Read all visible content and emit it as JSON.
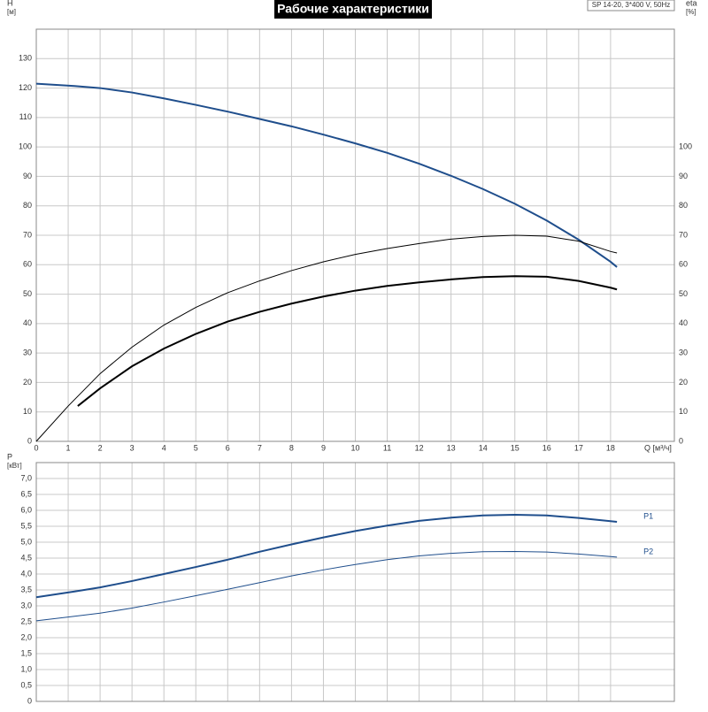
{
  "chart_data": [
    {
      "type": "line",
      "title": "Рабочие характеристики",
      "subtitle": "SP 14-20, 3*400 V, 50Hz",
      "ylabel": "H",
      "yunit": "[м]",
      "y2label": "eta",
      "y2unit": "[%]",
      "xlabel": "Q [м³/ч]",
      "xlim": [
        0,
        20
      ],
      "xticks": [
        0,
        1,
        2,
        3,
        4,
        5,
        6,
        7,
        8,
        9,
        10,
        11,
        12,
        13,
        14,
        15,
        16,
        17,
        18
      ],
      "ylim": [
        0,
        140
      ],
      "yticks": [
        0,
        10,
        20,
        30,
        40,
        50,
        60,
        70,
        80,
        90,
        100,
        110,
        120,
        130
      ],
      "y2lim": [
        0,
        140
      ],
      "y2ticks": [
        0,
        10,
        20,
        30,
        40,
        50,
        60,
        70,
        80,
        90,
        100
      ],
      "grid": true,
      "series": [
        {
          "color": "#1f4e8c",
          "width": 2,
          "x": [
            0,
            1.2,
            2,
            3,
            4,
            5,
            6,
            7,
            8,
            9,
            10,
            11,
            12,
            13,
            14,
            15,
            16,
            17,
            18,
            18.2
          ],
          "values": [
            121.5,
            120.7,
            120,
            118.5,
            116.5,
            114.3,
            112,
            109.5,
            107,
            104.2,
            101.2,
            98,
            94.3,
            90.2,
            85.7,
            80.7,
            75,
            68.5,
            61,
            59.2
          ]
        },
        {
          "color": "#000000",
          "width": 1,
          "axis": "y2",
          "x": [
            0,
            1,
            2,
            3,
            4,
            5,
            6,
            7,
            8,
            9,
            10,
            11,
            12,
            13,
            14,
            15,
            16,
            17,
            18,
            18.2
          ],
          "values": [
            0,
            12,
            23,
            32,
            39.5,
            45.5,
            50.5,
            54.5,
            58,
            61,
            63.5,
            65.5,
            67.2,
            68.7,
            69.6,
            70,
            69.7,
            68,
            64.5,
            64
          ]
        },
        {
          "color": "#000000",
          "width": 2,
          "axis": "y2",
          "x": [
            1.3,
            2,
            3,
            4,
            5,
            6,
            7,
            8,
            9,
            10,
            11,
            12,
            13,
            14,
            15,
            16,
            17,
            18,
            18.2
          ],
          "values": [
            12,
            18,
            25.5,
            31.5,
            36.5,
            40.7,
            44,
            46.8,
            49.2,
            51.2,
            52.8,
            54,
            55,
            55.8,
            56.1,
            55.9,
            54.5,
            52.2,
            51.6
          ]
        }
      ]
    },
    {
      "type": "line",
      "ylabel": "P",
      "yunit": "[кВт]",
      "xlim": [
        0,
        20
      ],
      "ylim": [
        0,
        7.5
      ],
      "yticks": [
        0,
        {
          "value": 0.5,
          "label": "0,5"
        },
        {
          "value": 1,
          "label": "1,0"
        },
        {
          "value": 1.5,
          "label": "1,5"
        },
        {
          "value": 2,
          "label": "2,0"
        },
        {
          "value": 2.5,
          "label": "2,5"
        },
        {
          "value": 3,
          "label": "3,0"
        },
        {
          "value": 3.5,
          "label": "3,5"
        },
        {
          "value": 4,
          "label": "4,0"
        },
        {
          "value": 4.5,
          "label": "4,5"
        },
        {
          "value": 5,
          "label": "5,0"
        },
        {
          "value": 5.5,
          "label": "5,5"
        },
        {
          "value": 6,
          "label": "6,0"
        },
        {
          "value": 6.5,
          "label": "6,5"
        },
        {
          "value": 7,
          "label": "7,0"
        }
      ],
      "grid": true,
      "series": [
        {
          "name": "P1",
          "color": "#1f4e8c",
          "width": 2,
          "x": [
            0,
            1.2,
            2,
            3,
            4,
            5,
            6,
            7,
            8,
            9,
            10,
            11,
            12,
            13,
            14,
            15,
            16,
            17,
            18,
            18.2
          ],
          "values": [
            3.27,
            3.45,
            3.58,
            3.78,
            4.0,
            4.22,
            4.45,
            4.7,
            4.93,
            5.15,
            5.35,
            5.52,
            5.67,
            5.77,
            5.84,
            5.86,
            5.84,
            5.76,
            5.66,
            5.64
          ]
        },
        {
          "name": "P2",
          "color": "#1f4e8c",
          "width": 1,
          "x": [
            0,
            1,
            2,
            3,
            4,
            5,
            6,
            7,
            8,
            9,
            10,
            11,
            12,
            13,
            14,
            15,
            16,
            17,
            18,
            18.2
          ],
          "values": [
            2.53,
            2.65,
            2.77,
            2.93,
            3.12,
            3.32,
            3.52,
            3.73,
            3.94,
            4.13,
            4.3,
            4.45,
            4.57,
            4.65,
            4.7,
            4.71,
            4.69,
            4.63,
            4.55,
            4.53
          ]
        }
      ]
    }
  ]
}
